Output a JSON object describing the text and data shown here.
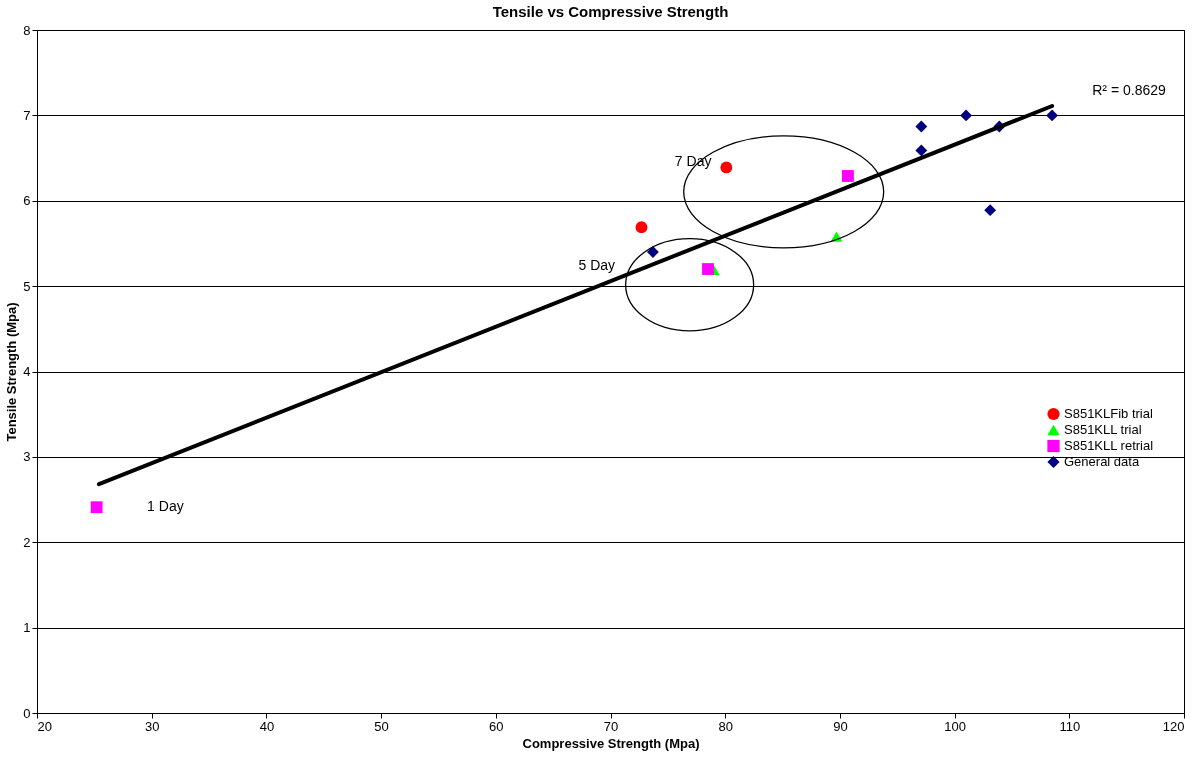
{
  "chart_data": {
    "type": "scatter",
    "title": "Tensile vs Compressive Strength",
    "xlabel": "Compressive Strength (Mpa)",
    "ylabel": "Tensile Strength (Mpa)",
    "xlim": [
      20,
      120
    ],
    "xticks": [
      20,
      30,
      40,
      50,
      60,
      70,
      80,
      90,
      100,
      110,
      120
    ],
    "ylim": [
      0,
      8
    ],
    "yticks": [
      0,
      1,
      2,
      3,
      4,
      5,
      6,
      7,
      8
    ],
    "grid": "y",
    "legend": "right",
    "series": [
      {
        "name": "S851KLFib  trial",
        "color": "#ff0000",
        "marker": "circle",
        "x": [
          72.7,
          80.1
        ],
        "values": [
          5.69,
          6.39
        ]
      },
      {
        "name": "S851KLL trial",
        "color": "#00ff00",
        "marker": "triangle",
        "x": [
          79.0,
          89.7
        ],
        "values": [
          5.19,
          5.58
        ]
      },
      {
        "name": "S851KLL retrial",
        "color": "#ff00ff",
        "marker": "square",
        "x": [
          25.2,
          78.5,
          90.7
        ],
        "values": [
          2.41,
          5.2,
          6.29
        ]
      },
      {
        "name": "General data",
        "color": "#000080",
        "marker": "diamond",
        "x": [
          73.7,
          97.1,
          97.1,
          101.0,
          103.9,
          103.1,
          108.5
        ],
        "values": [
          5.4,
          6.87,
          6.59,
          7.0,
          6.87,
          5.89,
          7.0
        ]
      },
      {
        "type": "line",
        "color": "#000000",
        "x": [
          25.4,
          108.5
        ],
        "values": [
          2.68,
          7.11
        ]
      }
    ],
    "annotations": [
      "1 Day",
      "5 Day",
      "7 Day",
      "R² = 0.8629"
    ]
  }
}
